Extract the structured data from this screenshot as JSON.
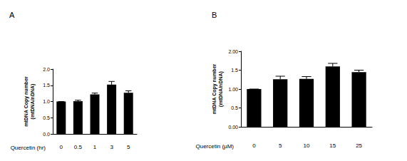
{
  "chart_data": [
    {
      "type": "bar",
      "title": "A",
      "x_label": "Quercetin (hr)",
      "y_label": "mtDNA Copy number\n(mtDNA/nDNA)",
      "categories": [
        "0",
        "0.5",
        "1",
        "3",
        "5"
      ],
      "values": [
        1.0,
        1.01,
        1.22,
        1.52,
        1.27
      ],
      "errors": [
        0.0,
        0.03,
        0.04,
        0.1,
        0.06
      ],
      "color": "#000000",
      "ylim": [
        0,
        2
      ],
      "yticks": [
        {
          "value": 0,
          "label": "0.0"
        },
        0.5,
        {
          "value": 1,
          "label": "1.0"
        },
        1.5,
        {
          "value": 2,
          "label": "2.0"
        }
      ],
      "grid": false
    },
    {
      "type": "bar",
      "title": "B",
      "x_label": "Quercetin (µM)",
      "y_label": "mtDNA Copy number\n(mtDNA/nDNA)",
      "categories": [
        "0",
        "5",
        "10",
        "15",
        "25"
      ],
      "values": [
        1.0,
        1.26,
        1.27,
        1.6,
        1.45
      ],
      "errors": [
        0.0,
        0.08,
        0.06,
        0.08,
        0.05
      ],
      "color": "#000000",
      "ylim": [
        0,
        2
      ],
      "yticks": [
        {
          "value": 0,
          "label": "0.00"
        },
        0.5,
        {
          "value": 1,
          "label": "1.00"
        },
        1.5,
        {
          "value": 2,
          "label": "2.00"
        }
      ],
      "grid": false
    }
  ]
}
